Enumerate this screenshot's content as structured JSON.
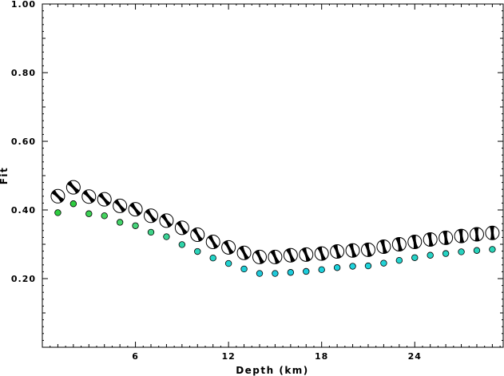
{
  "chart_data": {
    "type": "scatter",
    "title": "",
    "xlabel": "Depth (km)",
    "ylabel": "Fit",
    "xlim": [
      0,
      29.7
    ],
    "ylim": [
      0.0,
      1.0
    ],
    "xticks": [
      6,
      12,
      18,
      24
    ],
    "xtick_labels": [
      "6",
      "12",
      "18",
      "24"
    ],
    "yticks": [
      0.2,
      0.4,
      0.6,
      0.8,
      1.0
    ],
    "ytick_labels": [
      "0.20",
      "0.40",
      "0.60",
      "0.80",
      "1.00"
    ],
    "grid": false,
    "legend": "none",
    "series": [
      {
        "marker": "focal-mechanism-beachball",
        "color": "#000000",
        "x": [
          1,
          2,
          3,
          4,
          5,
          6,
          7,
          8,
          9,
          10,
          11,
          12,
          13,
          14,
          15,
          16,
          17,
          18,
          19,
          20,
          21,
          22,
          23,
          24,
          25,
          26,
          27,
          28,
          29
        ],
        "y": [
          0.44,
          0.466,
          0.439,
          0.431,
          0.412,
          0.402,
          0.383,
          0.369,
          0.348,
          0.328,
          0.307,
          0.291,
          0.275,
          0.263,
          0.263,
          0.268,
          0.27,
          0.273,
          0.279,
          0.282,
          0.284,
          0.293,
          0.3,
          0.307,
          0.314,
          0.319,
          0.324,
          0.329,
          0.333
        ]
      },
      {
        "marker": "circle",
        "x": [
          1,
          2,
          3,
          4,
          5,
          6,
          7,
          8,
          9,
          10,
          11,
          12,
          13,
          14,
          15,
          16,
          17,
          18,
          19,
          20,
          21,
          22,
          23,
          24,
          25,
          26,
          27,
          28,
          29
        ],
        "y": [
          0.392,
          0.418,
          0.389,
          0.383,
          0.364,
          0.354,
          0.335,
          0.322,
          0.299,
          0.279,
          0.26,
          0.244,
          0.228,
          0.215,
          0.215,
          0.218,
          0.221,
          0.226,
          0.232,
          0.236,
          0.237,
          0.245,
          0.253,
          0.261,
          0.268,
          0.273,
          0.278,
          0.282,
          0.285
        ],
        "colors": [
          "#2ecc40",
          "#2ecc40",
          "#3cd255",
          "#45d35e",
          "#44d46a",
          "#46d47a",
          "#3ed387",
          "#3ad396",
          "#2fd4a9",
          "#2bd3b9",
          "#25d4c7",
          "#20d3d2",
          "#1ecfd8",
          "#1fc9da",
          "#1fc9da",
          "#1ccbdb",
          "#1ccddc",
          "#1cd0dc",
          "#1cd2dc",
          "#1fd3dc",
          "#1fd4da",
          "#22d3d6",
          "#25d4cf",
          "#27d3c8",
          "#26d3c6",
          "#26d3c3",
          "#27d3c0",
          "#28d3bc",
          "#29d4b8"
        ]
      }
    ]
  }
}
